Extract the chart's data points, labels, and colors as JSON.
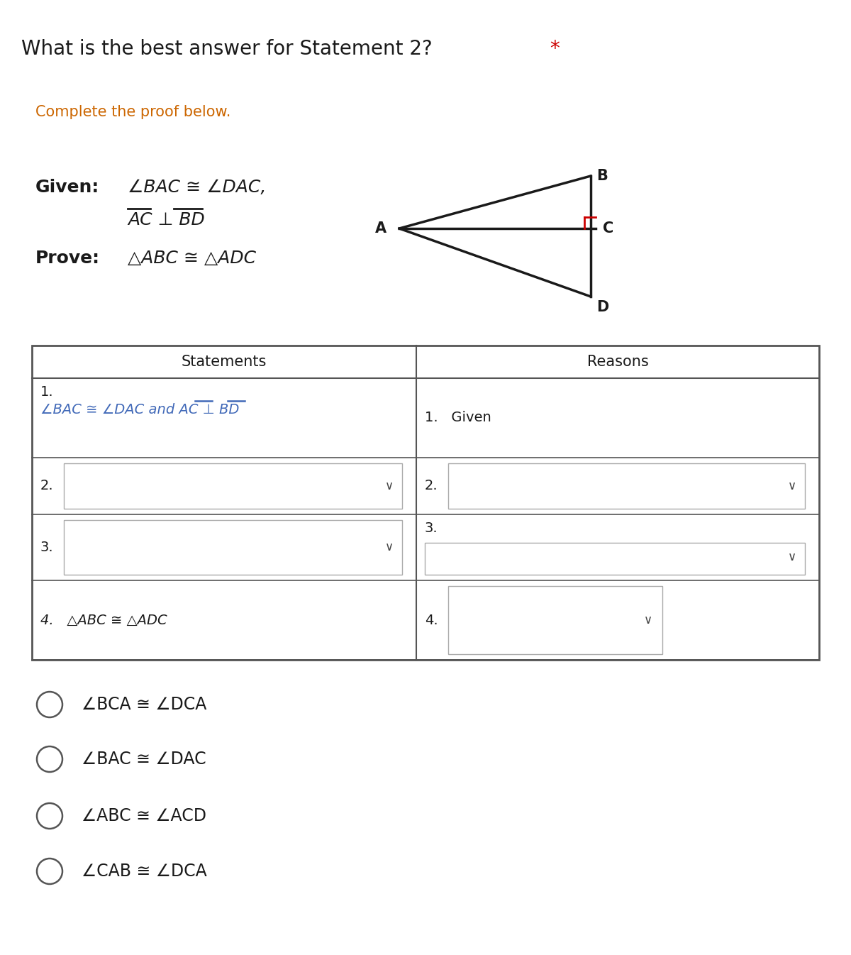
{
  "title": "What is the best answer for Statement 2?",
  "title_star": " *",
  "subtitle": "Complete the proof below.",
  "given_label": "Given:",
  "given_line1": "∠BAC ≅ ∠DAC,",
  "given_line2": "AC ⊥ BD",
  "prove_label": "Prove:",
  "prove_text": "△ABC ≅ △ADC",
  "table_headers": [
    "Statements",
    "Reasons"
  ],
  "row1_stmt_num": "1.",
  "row1_stmt_eq": "∠BAC ≅ ∠DAC and AC ⊥ BD",
  "row1_reason": "1.   Given",
  "row2_num": "2.",
  "row3_num": "3.",
  "row4_stmt": "4.   △ABC ≅ △ADC",
  "row4_reason_num": "4.",
  "options": [
    "∠BCA ≅ ∠DCA",
    "∠BAC ≅ ∠DAC",
    "∠ABC ≅ ∠ACD",
    "∠CAB ≅ ∠DCA"
  ],
  "bg_color": "#ffffff",
  "text_color": "#1a1a1a",
  "blue_color": "#4169b8",
  "red_color": "#cc0000",
  "subtitle_color": "#cc6600",
  "table_border_color": "#555555",
  "dropdown_border": "#aaaaaa",
  "triangle_color": "#1a1a1a",
  "right_angle_color": "#cc0000",
  "title_fontsize": 20,
  "subtitle_fontsize": 15,
  "given_fontsize": 18,
  "table_header_fontsize": 15,
  "table_body_fontsize": 14,
  "option_fontsize": 17,
  "fig_width": 12.0,
  "fig_height": 13.46
}
